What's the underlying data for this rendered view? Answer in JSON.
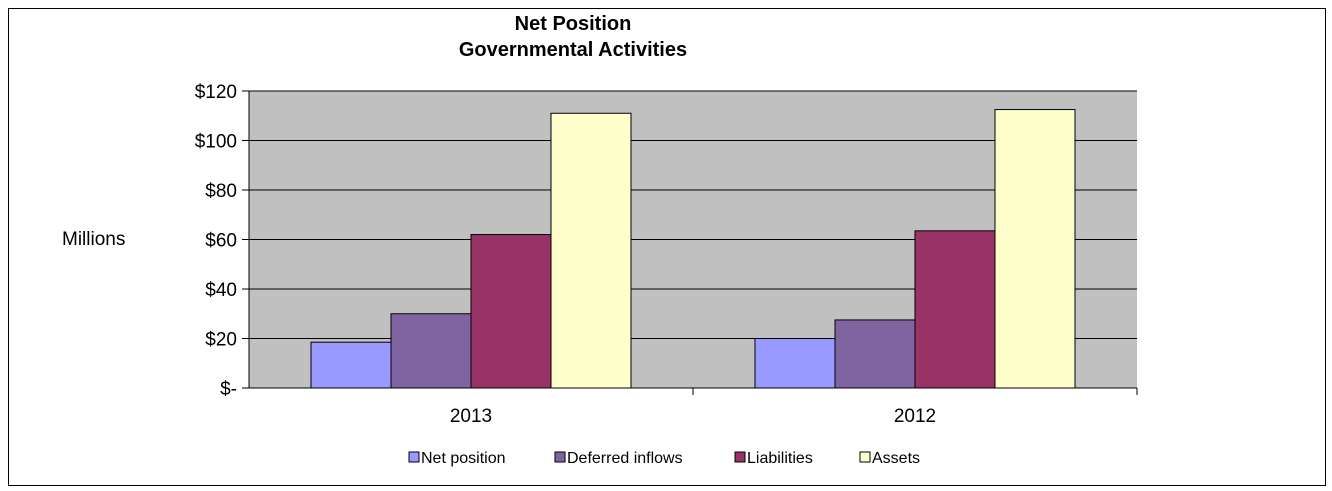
{
  "chart_data": {
    "type": "bar",
    "title": "Net Position",
    "subtitle": "Governmental  Activities",
    "ylabel": "Millions",
    "xlabel": "",
    "categories": [
      "2013",
      "2012"
    ],
    "ylim": [
      0,
      120
    ],
    "yticks": [
      0,
      20,
      40,
      60,
      80,
      100,
      120
    ],
    "ytick_labels": [
      "$-",
      "$20",
      "$40",
      "$60",
      "$80",
      "$100",
      "$120"
    ],
    "grid": true,
    "legend_position": "bottom",
    "series": [
      {
        "name": "Net position",
        "values": [
          18.5,
          20
        ],
        "color": "#9999ff"
      },
      {
        "name": "Deferred inflows",
        "values": [
          30,
          27.5
        ],
        "color": "#8064a2"
      },
      {
        "name": "Liabilities",
        "values": [
          62,
          63.5
        ],
        "color": "#993366"
      },
      {
        "name": "Assets",
        "values": [
          111,
          112.5
        ],
        "color": "#ffffcc"
      }
    ],
    "plot_background": "#c0c0c0"
  }
}
